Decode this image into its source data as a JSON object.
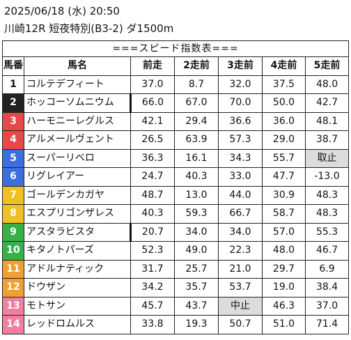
{
  "header": {
    "date": "2025/06/18 (水) 20:50",
    "race": "川崎12R 短夜特別(B3-2) ダ1500m"
  },
  "table": {
    "title": "===スピード指数表===",
    "columns": [
      "馬番",
      "馬名",
      "前走",
      "2走前",
      "3走前",
      "4走前",
      "5走前"
    ],
    "rows": [
      {
        "num": "1",
        "name": "コルテデフィート",
        "bg": "#ffffff",
        "fg": "#111111",
        "v": [
          "37.0",
          "8.7",
          "32.0",
          "37.5",
          "48.0"
        ],
        "hl": [
          false,
          false,
          false,
          false,
          false
        ],
        "thick": false
      },
      {
        "num": "2",
        "name": "ホッコーソムニウム",
        "bg": "#222222",
        "fg": "#ffffff",
        "v": [
          "66.0",
          "67.0",
          "70.0",
          "50.0",
          "42.7"
        ],
        "hl": [
          false,
          false,
          false,
          false,
          false
        ],
        "thick": true
      },
      {
        "num": "3",
        "name": "ハーモニーレグルス",
        "bg": "#e8484a",
        "fg": "#ffffff",
        "v": [
          "42.1",
          "29.4",
          "36.6",
          "36.0",
          "48.1"
        ],
        "hl": [
          false,
          false,
          false,
          false,
          false
        ],
        "thick": false
      },
      {
        "num": "4",
        "name": "アルメールヴェント",
        "bg": "#e8484a",
        "fg": "#ffffff",
        "v": [
          "26.5",
          "63.9",
          "57.3",
          "29.0",
          "38.7"
        ],
        "hl": [
          false,
          false,
          false,
          false,
          false
        ],
        "thick": false
      },
      {
        "num": "5",
        "name": "スーパーリベロ",
        "bg": "#3b6fe0",
        "fg": "#ffffff",
        "v": [
          "36.3",
          "16.1",
          "34.3",
          "55.7",
          "取止"
        ],
        "hl": [
          false,
          false,
          false,
          false,
          true
        ],
        "thick": false
      },
      {
        "num": "6",
        "name": "リグレイアー",
        "bg": "#3b6fe0",
        "fg": "#ffffff",
        "v": [
          "24.7",
          "40.3",
          "33.0",
          "47.7",
          "-13.0"
        ],
        "hl": [
          false,
          false,
          false,
          false,
          false
        ],
        "thick": false
      },
      {
        "num": "7",
        "name": "ゴールデンカガヤ",
        "bg": "#f0c020",
        "fg": "#ffffff",
        "v": [
          "48.7",
          "13.0",
          "44.0",
          "30.9",
          "48.3"
        ],
        "hl": [
          false,
          false,
          false,
          false,
          false
        ],
        "thick": false
      },
      {
        "num": "8",
        "name": "エスプリゴンザレス",
        "bg": "#f0c020",
        "fg": "#ffffff",
        "v": [
          "40.3",
          "59.3",
          "66.7",
          "58.7",
          "48.3"
        ],
        "hl": [
          false,
          false,
          false,
          false,
          false
        ],
        "thick": false
      },
      {
        "num": "9",
        "name": "アスタラビスタ",
        "bg": "#38b048",
        "fg": "#ffffff",
        "v": [
          "20.7",
          "34.0",
          "34.0",
          "57.0",
          "55.3"
        ],
        "hl": [
          false,
          false,
          false,
          false,
          false
        ],
        "thick": true
      },
      {
        "num": "10",
        "name": "キタノトパーズ",
        "bg": "#38b048",
        "fg": "#ffffff",
        "v": [
          "52.3",
          "49.0",
          "22.3",
          "48.0",
          "46.7"
        ],
        "hl": [
          false,
          false,
          false,
          false,
          false
        ],
        "thick": false
      },
      {
        "num": "11",
        "name": "アドルナティック",
        "bg": "#f0a030",
        "fg": "#ffffff",
        "v": [
          "31.7",
          "25.7",
          "21.0",
          "29.7",
          "6.9"
        ],
        "hl": [
          false,
          false,
          false,
          false,
          false
        ],
        "thick": false
      },
      {
        "num": "12",
        "name": "ドウザン",
        "bg": "#f0a030",
        "fg": "#ffffff",
        "v": [
          "34.2",
          "35.7",
          "53.7",
          "19.0",
          "38.4"
        ],
        "hl": [
          false,
          false,
          false,
          false,
          false
        ],
        "thick": false
      },
      {
        "num": "13",
        "name": "モトサン",
        "bg": "#f07fa0",
        "fg": "#ffffff",
        "v": [
          "45.7",
          "43.7",
          "中止",
          "46.3",
          "37.0"
        ],
        "hl": [
          false,
          false,
          true,
          false,
          false
        ],
        "thick": false
      },
      {
        "num": "14",
        "name": "レッドロムルス",
        "bg": "#f07fa0",
        "fg": "#ffffff",
        "v": [
          "33.8",
          "19.3",
          "50.7",
          "51.0",
          "71.4"
        ],
        "hl": [
          false,
          false,
          false,
          false,
          false
        ],
        "thick": false
      }
    ]
  }
}
